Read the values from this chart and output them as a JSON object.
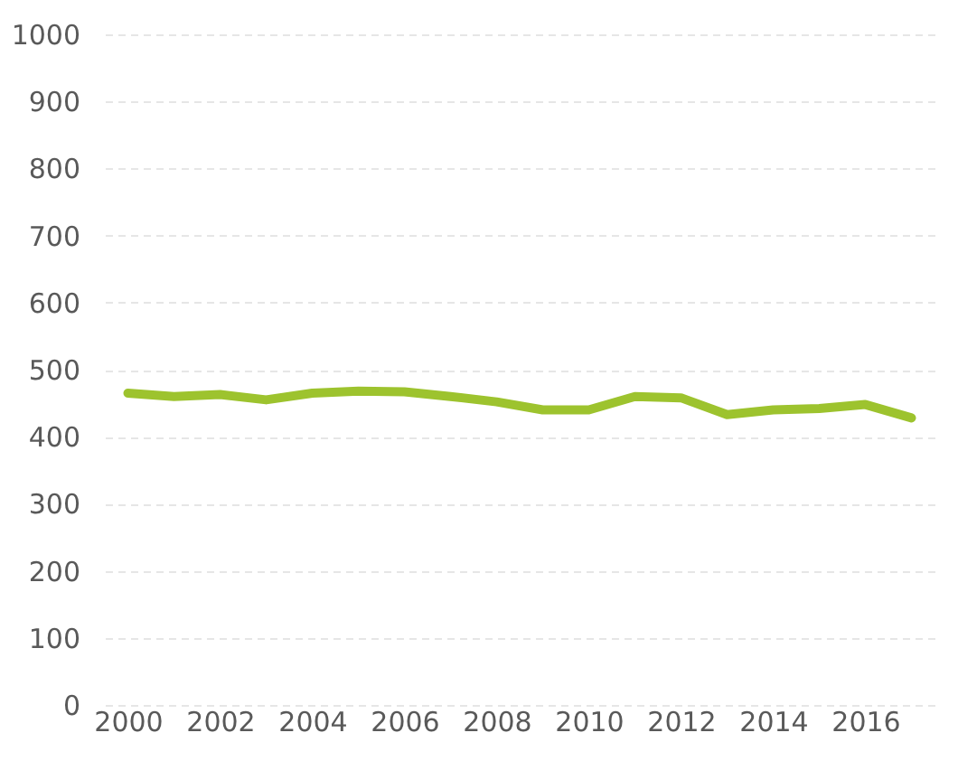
{
  "chart_data": {
    "type": "line",
    "x": [
      2000,
      2001,
      2002,
      2003,
      2004,
      2005,
      2006,
      2007,
      2008,
      2009,
      2010,
      2011,
      2012,
      2013,
      2014,
      2015,
      2016,
      2017
    ],
    "series": [
      {
        "color": "#9dc32e",
        "values": [
          465,
          460,
          463,
          455,
          465,
          468,
          467,
          460,
          452,
          440,
          440,
          460,
          458,
          433,
          440,
          442,
          448,
          428
        ]
      }
    ],
    "xlim": [
      1999.5,
      2017.5
    ],
    "xticks": [
      2000,
      2002,
      2004,
      2006,
      2008,
      2010,
      2012,
      2014,
      2016
    ],
    "ylim": [
      0,
      1000
    ],
    "yticks": [
      0,
      100,
      200,
      300,
      400,
      500,
      600,
      700,
      800,
      900,
      1000
    ],
    "grid": "y",
    "marker": "none",
    "line_style": "solid"
  }
}
